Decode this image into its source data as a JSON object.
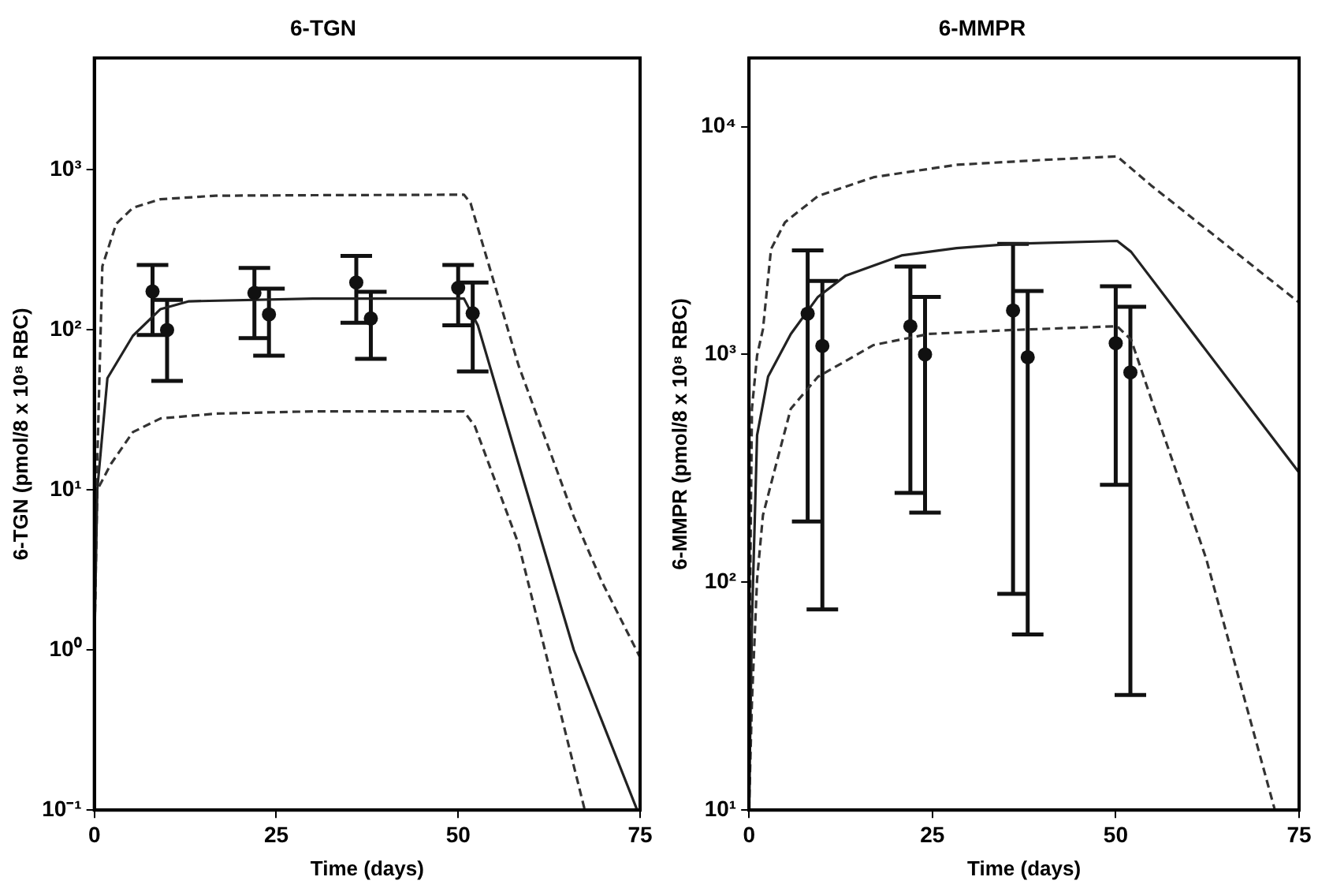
{
  "chart_data": [
    {
      "type": "line",
      "title": "6-TGN",
      "xlabel": "Time (days)",
      "ylabel": "6-TGN (pmol/8 x 10⁸ RBC)",
      "log": "y",
      "xlim": [
        0,
        75
      ],
      "xticks": [
        0,
        25,
        50,
        75
      ],
      "ylim": [
        0.1,
        5000
      ],
      "yticks": [
        {
          "value": 0.1,
          "label": "10⁻¹"
        },
        {
          "value": 1,
          "label": "10⁰"
        },
        {
          "value": 10,
          "label": "10¹"
        },
        {
          "value": 100,
          "label": "10²"
        },
        {
          "value": 1000,
          "label": "10³"
        }
      ],
      "series": [
        {
          "line_style": "solid",
          "color": "#222222",
          "x": [
            0,
            0.4,
            1.8,
            5.3,
            9.1,
            13,
            30,
            50.8,
            52.7,
            58.3,
            65.9,
            74.6
          ],
          "values": [
            1,
            10,
            50,
            92,
            135,
            151,
            157,
            157,
            107,
            14.6,
            1,
            0.1
          ]
        },
        {
          "line_style": "dashed",
          "color": "#333333",
          "x": [
            0,
            0.3,
            1.1,
            3,
            5.3,
            9.1,
            16.7,
            30,
            50.8,
            51.7,
            58.3,
            65.9,
            69.7,
            75
          ],
          "values": [
            1,
            10,
            250,
            460,
            580,
            656,
            690,
            695,
            700,
            620,
            60,
            6.8,
            2.7,
            0.9
          ]
        },
        {
          "line_style": "dashed",
          "color": "#333333",
          "x": [
            0,
            0.4,
            2.3,
            5.3,
            9.1,
            16.7,
            30,
            50.8,
            52.3,
            58.3,
            67.4
          ],
          "values": [
            1,
            10,
            14.6,
            23,
            28,
            30,
            31,
            31,
            25,
            4.6,
            0.1
          ]
        },
        {
          "type": "scatter",
          "marker": "circle",
          "color": "#111111",
          "x": [
            8,
            10,
            22,
            24,
            36,
            38,
            50,
            52
          ],
          "values": [
            174,
            100,
            170,
            125,
            198,
            118,
            183,
            127
          ],
          "errors": [
            [
              93,
              255
            ],
            [
              48,
              154
            ],
            [
              89,
              244
            ],
            [
              69,
              181
            ],
            [
              111,
              290
            ],
            [
              66,
              173
            ],
            [
              107,
              255
            ],
            [
              55,
              198
            ]
          ]
        }
      ]
    },
    {
      "type": "line",
      "title": "6-MMPR",
      "xlabel": "Time (days)",
      "ylabel": "6-MMPR (pmol/8 x 10⁸ RBC)",
      "log": "y",
      "xlim": [
        0,
        75
      ],
      "xticks": [
        0,
        25,
        50,
        75
      ],
      "ylim": [
        10,
        20000
      ],
      "yticks": [
        {
          "value": 10,
          "label": "10¹"
        },
        {
          "value": 100,
          "label": "10²"
        },
        {
          "value": 1000,
          "label": "10³"
        },
        {
          "value": 10000,
          "label": "10⁴"
        }
      ],
      "series": [
        {
          "line_style": "solid",
          "color": "#222222",
          "x": [
            0,
            0.4,
            1.1,
            2.6,
            5.7,
            9.4,
            13.2,
            20.8,
            28.3,
            35.9,
            50.2,
            52.1,
            75
          ],
          "values": [
            10,
            67,
            442,
            800,
            1230,
            1790,
            2220,
            2720,
            2930,
            3060,
            3150,
            2820,
            303
          ]
        },
        {
          "line_style": "dashed",
          "color": "#333333",
          "x": [
            0,
            0.4,
            1.1,
            1.9,
            3,
            4.9,
            9.4,
            17,
            28.3,
            39.7,
            50.2,
            54.8,
            75
          ],
          "values": [
            30,
            578,
            990,
            1290,
            2900,
            3800,
            4960,
            6000,
            6800,
            7130,
            7400,
            5530,
            1690
          ]
        },
        {
          "line_style": "dashed",
          "color": "#333333",
          "x": [
            0,
            0.4,
            1.1,
            1.9,
            3.4,
            5.7,
            9.4,
            17,
            24.5,
            35.9,
            50.2,
            52.1,
            54.8,
            62.3,
            71.7
          ],
          "values": [
            10,
            30,
            103,
            197,
            303,
            578,
            798,
            1100,
            1230,
            1280,
            1330,
            1160,
            643,
            128,
            10
          ]
        },
        {
          "type": "scatter",
          "marker": "circle",
          "color": "#111111",
          "x": [
            8,
            10,
            22,
            24,
            36,
            38,
            50,
            52
          ],
          "values": [
            1510,
            1090,
            1330,
            1000,
            1560,
            973,
            1120,
            834
          ],
          "errors": [
            [
              185,
              2860
            ],
            [
              76,
              2100
            ],
            [
              247,
              2430
            ],
            [
              202,
              1790
            ],
            [
              89,
              3060
            ],
            [
              59,
              1900
            ],
            [
              268,
              1990
            ],
            [
              32,
              1620
            ]
          ]
        }
      ]
    }
  ]
}
